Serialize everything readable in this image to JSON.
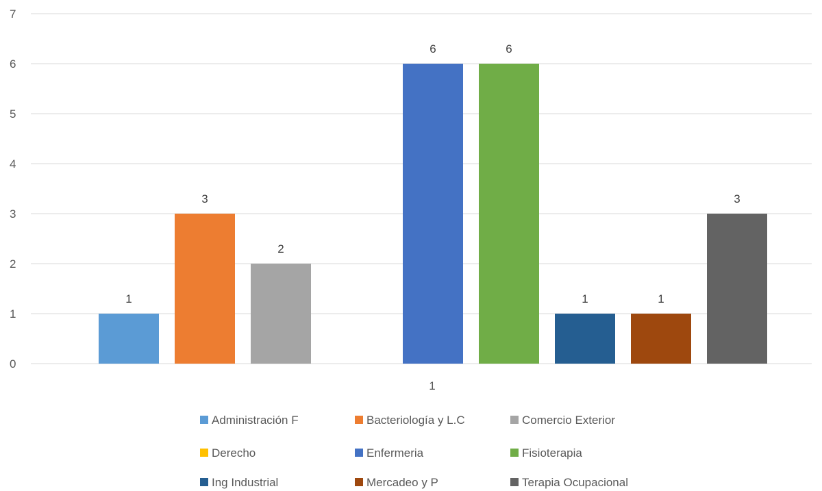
{
  "chart_data": {
    "type": "bar",
    "categories": [
      "1"
    ],
    "series": [
      {
        "name": "Administración F",
        "values": [
          1
        ],
        "color": "#5B9BD5"
      },
      {
        "name": "Bacteriología y L.C",
        "values": [
          3
        ],
        "color": "#ED7D31"
      },
      {
        "name": "Comercio Exterior",
        "values": [
          2
        ],
        "color": "#A5A5A5"
      },
      {
        "name": "Derecho",
        "values": [
          0
        ],
        "color": "#FFC000"
      },
      {
        "name": "Enfermeria",
        "values": [
          6
        ],
        "color": "#4472C4"
      },
      {
        "name": "Fisioterapia",
        "values": [
          6
        ],
        "color": "#70AD47"
      },
      {
        "name": "Ing Industrial",
        "values": [
          1
        ],
        "color": "#255E91"
      },
      {
        "name": "Mercadeo y P",
        "values": [
          1
        ],
        "color": "#9E480E"
      },
      {
        "name": "Terapia Ocupacional",
        "values": [
          3
        ],
        "color": "#636363"
      }
    ],
    "yticks": [
      "0",
      "1",
      "2",
      "3",
      "4",
      "5",
      "6",
      "7"
    ],
    "ylim": [
      0,
      7
    ],
    "grid": true,
    "legend_position": "bottom",
    "title": "",
    "xlabel": "",
    "ylabel": ""
  }
}
